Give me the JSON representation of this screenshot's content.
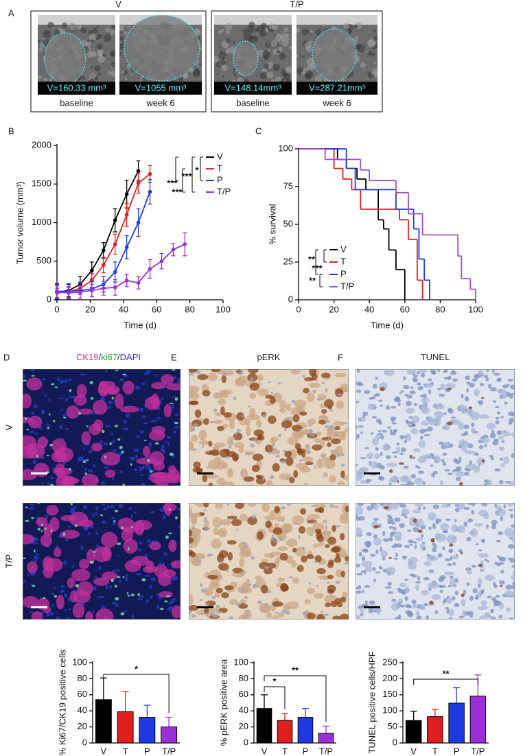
{
  "figure": {
    "panel_a": {
      "letter": "A",
      "groups": [
        {
          "title": "V",
          "images": [
            {
              "measure": "V=160.33 mm³",
              "label": "baseline"
            },
            {
              "measure": "V=1055 mm³",
              "label": "week 6"
            }
          ]
        },
        {
          "title": "T/P",
          "images": [
            {
              "measure": "V=148.14mm³",
              "label": "baseline"
            },
            {
              "measure": "V=287.21mm³",
              "label": "week 6"
            }
          ]
        }
      ]
    },
    "row_labels": [
      "V",
      "T/P"
    ],
    "micrographs": [
      {
        "letter": "D",
        "stain_parts": [
          {
            "text": "CK19",
            "color": "#c8289e"
          },
          {
            "text": "/",
            "color": "#333333"
          },
          {
            "text": "ki67",
            "color": "#2e9a2e"
          },
          {
            "text": "/",
            "color": "#333333"
          },
          {
            "text": "DAPI",
            "color": "#2a35d0"
          }
        ]
      },
      {
        "letter": "E",
        "stain_parts": [
          {
            "text": "pERK",
            "color": "#222222"
          }
        ]
      },
      {
        "letter": "F",
        "stain_parts": [
          {
            "text": "TUNEL",
            "color": "#222222"
          }
        ]
      }
    ]
  },
  "chart_data": [
    {
      "type": "line",
      "panel": "B",
      "ylabel": "Tumor volume (mm³)",
      "xlabel": "Time (d)",
      "xlim": [
        0,
        100
      ],
      "xticks": [
        0,
        20,
        40,
        60,
        80,
        100
      ],
      "ylim": [
        0,
        2000
      ],
      "yticks": [
        0,
        500,
        1000,
        1500,
        2000
      ],
      "series": [
        {
          "name": "V",
          "color": "#000000",
          "x": [
            0,
            7,
            14,
            21,
            28,
            35,
            42,
            49
          ],
          "values": [
            100,
            120,
            200,
            380,
            640,
            1030,
            1370,
            1670
          ],
          "errors": [
            100,
            80,
            100,
            110,
            100,
            150,
            180,
            130
          ]
        },
        {
          "name": "T",
          "color": "#e01f1f",
          "x": [
            0,
            7,
            14,
            21,
            28,
            35,
            42,
            49,
            56
          ],
          "values": [
            90,
            100,
            150,
            250,
            450,
            720,
            1100,
            1510,
            1630
          ],
          "errors": [
            60,
            70,
            80,
            90,
            100,
            130,
            150,
            130,
            110
          ]
        },
        {
          "name": "P",
          "color": "#1f3ae0",
          "x": [
            0,
            7,
            14,
            21,
            28,
            35,
            42,
            49,
            56
          ],
          "values": [
            110,
            110,
            120,
            140,
            200,
            360,
            680,
            1000,
            1400
          ],
          "errors": [
            100,
            100,
            100,
            100,
            100,
            130,
            150,
            180,
            160
          ]
        },
        {
          "name": "T/P",
          "color": "#9b30d9",
          "x": [
            0,
            7,
            14,
            21,
            28,
            35,
            42,
            49,
            56,
            63,
            70,
            77
          ],
          "values": [
            100,
            90,
            100,
            120,
            150,
            160,
            250,
            220,
            400,
            500,
            650,
            720
          ],
          "errors": [
            80,
            70,
            80,
            80,
            90,
            100,
            80,
            80,
            120,
            100,
            80,
            150
          ]
        }
      ],
      "significance": [
        "*",
        "***",
        "***",
        "***"
      ]
    },
    {
      "type": "step",
      "panel": "C",
      "ylabel": "% survival",
      "xlabel": "Time (d)",
      "xlim": [
        0,
        100
      ],
      "xticks": [
        0,
        20,
        40,
        60,
        80,
        100
      ],
      "ylim": [
        0,
        100
      ],
      "yticks": [
        0,
        25,
        50,
        75,
        100
      ],
      "series": [
        {
          "name": "V",
          "color": "#000000",
          "x": [
            0,
            22,
            27,
            33,
            38,
            45,
            48,
            51,
            55,
            60
          ],
          "values": [
            100,
            93,
            87,
            80,
            73,
            53,
            47,
            33,
            20,
            0
          ]
        },
        {
          "name": "T",
          "color": "#e01f1f",
          "x": [
            0,
            20,
            25,
            30,
            35,
            57,
            62,
            67,
            70
          ],
          "values": [
            100,
            87,
            80,
            73,
            60,
            53,
            40,
            13,
            0
          ]
        },
        {
          "name": "P",
          "color": "#1f3ae0",
          "x": [
            0,
            27,
            32,
            55,
            65,
            68,
            71,
            74
          ],
          "values": [
            100,
            87,
            73,
            60,
            47,
            27,
            13,
            0
          ]
        },
        {
          "name": "T/P",
          "color": "#a050c0",
          "x": [
            0,
            15,
            35,
            40,
            55,
            62,
            70,
            90,
            92,
            97,
            100
          ],
          "values": [
            100,
            93,
            86,
            79,
            71,
            57,
            43,
            29,
            14,
            7,
            0
          ]
        }
      ],
      "significance": [
        "**",
        "***",
        "**"
      ]
    },
    {
      "type": "bar",
      "ylabel": "% Ki67/CK19 positive cells",
      "categories": [
        "V",
        "T",
        "P",
        "T/P"
      ],
      "values": [
        54,
        39,
        32,
        20
      ],
      "errors": [
        27,
        25,
        15,
        12
      ],
      "colors": [
        "#000000",
        "#e01f1f",
        "#1f3ae0",
        "#9b30d9"
      ],
      "ylim": [
        0,
        100
      ],
      "yticks": [
        0,
        20,
        40,
        60,
        80,
        100
      ],
      "significance": [
        "*"
      ]
    },
    {
      "type": "bar",
      "ylabel": "% pERK positive area",
      "categories": [
        "V",
        "T",
        "P",
        "T/P"
      ],
      "values": [
        43,
        28,
        32,
        12
      ],
      "errors": [
        17,
        9,
        11,
        9
      ],
      "colors": [
        "#000000",
        "#e01f1f",
        "#1f3ae0",
        "#9b30d9"
      ],
      "ylim": [
        0,
        100
      ],
      "yticks": [
        0,
        20,
        40,
        60,
        80,
        100
      ],
      "significance": [
        "*",
        "**"
      ]
    },
    {
      "type": "bar",
      "ylabel": "TUNEL positive cells/HPF",
      "categories": [
        "V",
        "T",
        "P",
        "T/P"
      ],
      "values": [
        70,
        82,
        124,
        146
      ],
      "errors": [
        29,
        23,
        48,
        66
      ],
      "colors": [
        "#000000",
        "#e01f1f",
        "#1f3ae0",
        "#9b30d9"
      ],
      "ylim": [
        0,
        250
      ],
      "yticks": [
        0,
        50,
        100,
        150,
        200,
        250
      ],
      "significance": [
        "**"
      ]
    }
  ]
}
